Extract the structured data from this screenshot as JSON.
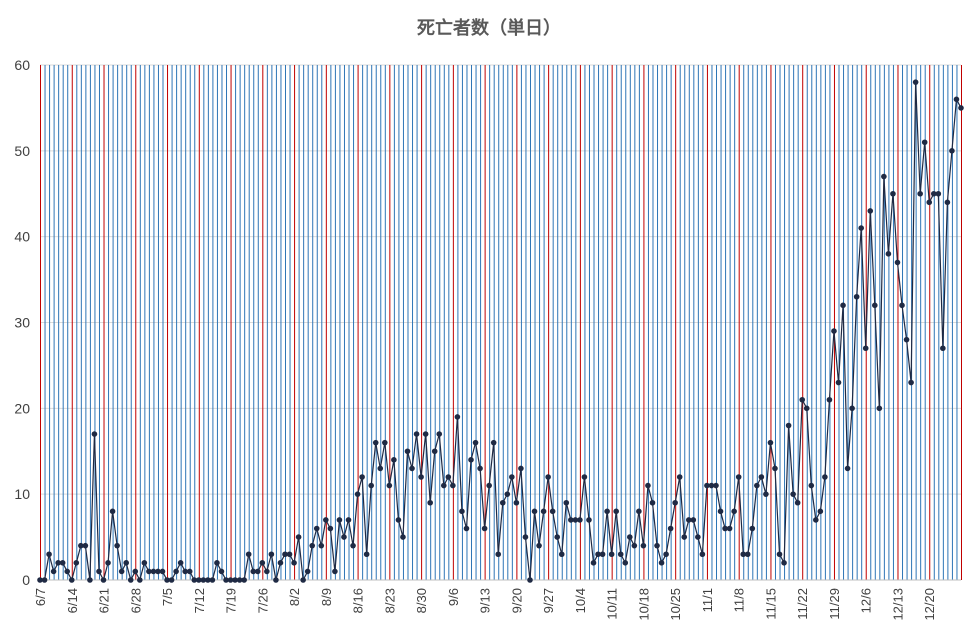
{
  "chart_data": {
    "type": "line",
    "title": "死亡者数（単日）",
    "xlabel": "",
    "ylabel": "",
    "ylim": [
      0,
      60
    ],
    "yticks": [
      0,
      10,
      20,
      30,
      40,
      50,
      60
    ],
    "x_start": "6/7",
    "x_end": "12/24",
    "x_tick_labels": [
      "6/7",
      "6/14",
      "6/21",
      "6/28",
      "7/5",
      "7/12",
      "7/19",
      "7/26",
      "8/2",
      "8/9",
      "8/16",
      "8/23",
      "8/30",
      "9/6",
      "9/13",
      "9/20",
      "9/27",
      "10/4",
      "10/11",
      "10/18",
      "10/25",
      "11/1",
      "11/8",
      "11/15",
      "11/22",
      "11/29",
      "12/6",
      "12/13",
      "12/20"
    ],
    "grid": true,
    "legend": "none",
    "colors": {
      "line": "#1f2a44",
      "marker": "#1f2a44",
      "daily_gridline": "#2e75b6",
      "weekly_gridline": "#c00000",
      "horizontal_gridline": "#d9d9d9",
      "axis": "#bfbfbf"
    },
    "series": [
      {
        "values": [
          0,
          0,
          3,
          1,
          2,
          2,
          1,
          0,
          2,
          4,
          4,
          0,
          17,
          1,
          0,
          2,
          8,
          4,
          1,
          2,
          0,
          1,
          0,
          2,
          1,
          1,
          1,
          1,
          0,
          0,
          1,
          2,
          1,
          1,
          0,
          0,
          0,
          0,
          0,
          2,
          1,
          0,
          0,
          0,
          0,
          0,
          3,
          1,
          1,
          2,
          1,
          3,
          0,
          2,
          3,
          3,
          2,
          5,
          0,
          1,
          4,
          6,
          4,
          7,
          6,
          1,
          7,
          5,
          7,
          4,
          10,
          12,
          3,
          11,
          16,
          13,
          16,
          11,
          14,
          7,
          5,
          15,
          13,
          17,
          12,
          17,
          9,
          15,
          17,
          11,
          12,
          11,
          19,
          8,
          6,
          14,
          16,
          13,
          6,
          11,
          16,
          3,
          9,
          10,
          12,
          9,
          13,
          5,
          0,
          8,
          4,
          8,
          12,
          8,
          5,
          3,
          9,
          7,
          7,
          7,
          12,
          7,
          2,
          3,
          3,
          8,
          3,
          8,
          3,
          2,
          5,
          4,
          8,
          4,
          11,
          9,
          4,
          2,
          3,
          6,
          9,
          12,
          5,
          7,
          7,
          5,
          3,
          11,
          11,
          11,
          8,
          6,
          6,
          8,
          12,
          3,
          3,
          6,
          11,
          12,
          10,
          16,
          13,
          3,
          2,
          18,
          10,
          9,
          21,
          20,
          11,
          7,
          8,
          12,
          21,
          29,
          23,
          32,
          13,
          20,
          33,
          41,
          27,
          43,
          32,
          20,
          47,
          38,
          45,
          37,
          32,
          28,
          23,
          58,
          45,
          51,
          44,
          45,
          45,
          27,
          44,
          50,
          56,
          55
        ]
      }
    ]
  }
}
